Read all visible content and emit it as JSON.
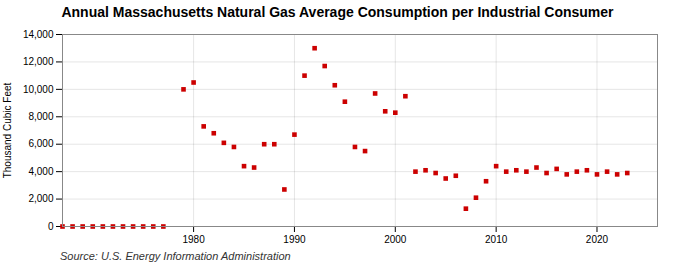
{
  "chart_data": {
    "type": "scatter",
    "title": "Annual Massachusetts Natural Gas Average Consumption per Industrial Consumer",
    "ylabel": "Thousand Cubic Feet",
    "source": "Source: U.S. Energy Information Administration",
    "x": [
      1967,
      1968,
      1969,
      1970,
      1971,
      1972,
      1973,
      1974,
      1975,
      1976,
      1977,
      1979,
      1980,
      1981,
      1982,
      1983,
      1984,
      1985,
      1986,
      1987,
      1988,
      1989,
      1990,
      1991,
      1992,
      1993,
      1994,
      1995,
      1996,
      1997,
      1998,
      1999,
      2000,
      2001,
      2002,
      2003,
      2004,
      2005,
      2006,
      2007,
      2008,
      2009,
      2010,
      2011,
      2012,
      2013,
      2014,
      2015,
      2016,
      2017,
      2018,
      2019,
      2020,
      2021,
      2022,
      2023
    ],
    "values": [
      0,
      0,
      0,
      0,
      0,
      0,
      0,
      0,
      0,
      0,
      0,
      10000,
      10500,
      7300,
      6800,
      6100,
      5800,
      4400,
      4300,
      6000,
      6000,
      2700,
      6700,
      11000,
      13000,
      11700,
      10300,
      9100,
      5800,
      5500,
      9700,
      8400,
      8300,
      9500,
      4000,
      4100,
      3900,
      3500,
      3700,
      1300,
      2100,
      3300,
      4400,
      4000,
      4100,
      4000,
      4300,
      3900,
      4200,
      3800,
      4000,
      4100,
      3800,
      4000,
      3800,
      3900
    ],
    "color": "#cc0000",
    "marker": "square",
    "xlim": [
      1967,
      2026
    ],
    "xticks": [
      1980,
      1990,
      2000,
      2010,
      2020
    ],
    "ylim": [
      0,
      14000
    ],
    "yticks": [
      0,
      {
        "value": 2000,
        "label": "2,000"
      },
      {
        "value": 4000,
        "label": "4,000"
      },
      {
        "value": 6000,
        "label": "6,000"
      },
      {
        "value": 8000,
        "label": "8,000"
      },
      {
        "value": 10000,
        "label": "10,000"
      },
      {
        "value": 12000,
        "label": "12,000"
      },
      {
        "value": 14000,
        "label": "14,000"
      }
    ],
    "grid": true
  }
}
